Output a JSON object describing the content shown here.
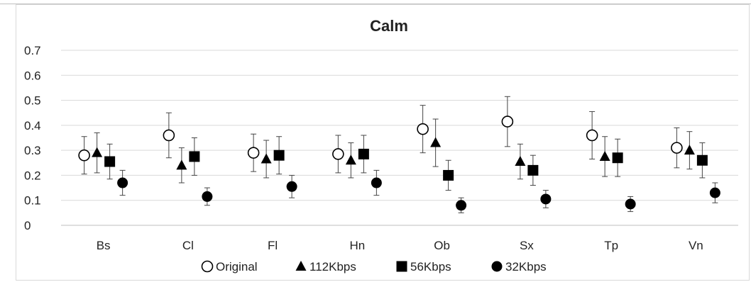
{
  "chart_data": {
    "type": "scatter",
    "title": "Calm",
    "categories": [
      "Bs",
      "Cl",
      "Fl",
      "Hn",
      "Ob",
      "Sx",
      "Tp",
      "Vn"
    ],
    "ylim": [
      0,
      0.7
    ],
    "yticks": [
      "0",
      "0.1",
      "0.2",
      "0.3",
      "0.4",
      "0.5",
      "0.6",
      "0.7"
    ],
    "grid": true,
    "legend_position": "bottom",
    "error_bars": true,
    "series": [
      {
        "name": "Original",
        "marker": "open-circle",
        "values": [
          0.28,
          0.36,
          0.29,
          0.285,
          0.385,
          0.415,
          0.36,
          0.31
        ],
        "errors": [
          0.075,
          0.09,
          0.075,
          0.075,
          0.095,
          0.1,
          0.095,
          0.08
        ]
      },
      {
        "name": "112Kbps",
        "marker": "triangle",
        "values": [
          0.29,
          0.24,
          0.265,
          0.26,
          0.33,
          0.255,
          0.275,
          0.3
        ],
        "errors": [
          0.08,
          0.07,
          0.075,
          0.07,
          0.095,
          0.07,
          0.08,
          0.075
        ]
      },
      {
        "name": "56Kbps",
        "marker": "square",
        "values": [
          0.255,
          0.275,
          0.28,
          0.285,
          0.2,
          0.22,
          0.27,
          0.26
        ],
        "errors": [
          0.07,
          0.075,
          0.075,
          0.075,
          0.06,
          0.06,
          0.075,
          0.07
        ]
      },
      {
        "name": "32Kbps",
        "marker": "filled-circle",
        "values": [
          0.17,
          0.115,
          0.155,
          0.17,
          0.08,
          0.105,
          0.085,
          0.13
        ],
        "errors": [
          0.05,
          0.035,
          0.045,
          0.05,
          0.03,
          0.035,
          0.03,
          0.04
        ]
      }
    ],
    "colors": {
      "marker": "#000000",
      "grid": "#d9d9d9",
      "text": "#222222"
    }
  }
}
